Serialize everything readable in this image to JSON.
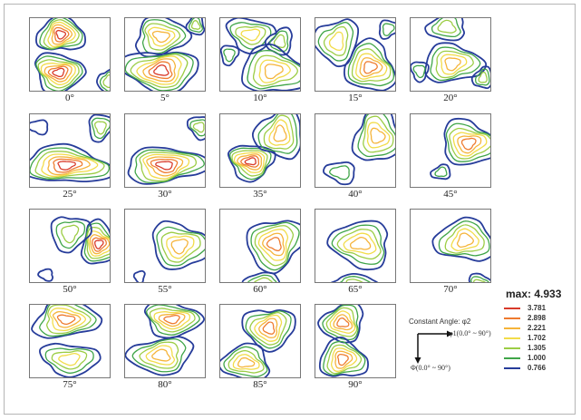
{
  "panels": [
    {
      "label": "0°"
    },
    {
      "label": "5°"
    },
    {
      "label": "10°"
    },
    {
      "label": "15°"
    },
    {
      "label": "20°"
    },
    {
      "label": "25°"
    },
    {
      "label": "30°"
    },
    {
      "label": "35°"
    },
    {
      "label": "40°"
    },
    {
      "label": "45°"
    },
    {
      "label": "50°"
    },
    {
      "label": "55°"
    },
    {
      "label": "60°"
    },
    {
      "label": "65°"
    },
    {
      "label": "70°"
    },
    {
      "label": "75°"
    },
    {
      "label": "80°"
    },
    {
      "label": "85°"
    },
    {
      "label": "90°"
    }
  ],
  "legend": {
    "title": "max: 4.933",
    "levels": [
      {
        "value": "3.781",
        "color": "#d83a2a"
      },
      {
        "value": "2.898",
        "color": "#ee7b2f"
      },
      {
        "value": "2.221",
        "color": "#f5b43a"
      },
      {
        "value": "1.702",
        "color": "#f2dc4a"
      },
      {
        "value": "1.305",
        "color": "#9ccd45"
      },
      {
        "value": "1.000",
        "color": "#3fa548"
      },
      {
        "value": "0.766",
        "color": "#263c9a"
      }
    ]
  },
  "orientation": {
    "title": "Constant Angle: φ2",
    "phi1_label": "φ1(0.0° ~ 90°)",
    "phi_label": "Φ(0.0° ~ 90°)"
  }
}
